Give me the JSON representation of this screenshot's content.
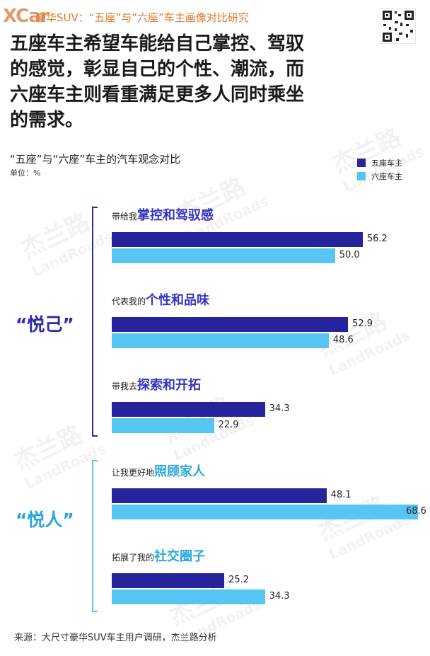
{
  "header": {
    "logo_text": "XCar",
    "title": "豪华SUV：“五座”与“六座”车主画像对比研究"
  },
  "headline": "五座车主希望车能给自己掌控、驾驭\n的感觉，彰显自己的个性、潮流，而\n六座车主则看重满足更多人同时乘坐\n的需求。",
  "chart_data": {
    "type": "bar",
    "orientation": "horizontal",
    "title": "“五座”与“六座”车主的汽车观念对比",
    "unit": "单位：%",
    "xlim": [
      0,
      70
    ],
    "legend_position": "top-right",
    "groups": [
      {
        "label": "“悦己”",
        "categories": [
          0,
          1,
          2
        ]
      },
      {
        "label": "“悦人”",
        "categories": [
          3,
          4
        ]
      }
    ],
    "categories": [
      {
        "prefix": "带给我",
        "highlight": "掌控和驾驭感"
      },
      {
        "prefix": "代表我的",
        "highlight": "个性和品味"
      },
      {
        "prefix": "带我去",
        "highlight": "探索和开拓"
      },
      {
        "prefix": "让我更好地",
        "highlight": "照顾家人"
      },
      {
        "prefix": "拓展了我的",
        "highlight": "社交圈子"
      }
    ],
    "series": [
      {
        "name": "五座车主",
        "color": "#27239d",
        "values": [
          56.2,
          52.9,
          34.3,
          48.1,
          25.2
        ]
      },
      {
        "name": "六座车主",
        "color": "#55c5f1",
        "values": [
          50.0,
          48.6,
          22.9,
          68.6,
          34.3
        ]
      }
    ],
    "value_labels": [
      [
        "56.2",
        "52.9",
        "34.3",
        "48.1",
        "25.2"
      ],
      [
        "50.0",
        "48.6",
        "22.9",
        "68.6",
        "34.3"
      ]
    ]
  },
  "watermark": {
    "cn": "杰兰路",
    "en": "LandRoads"
  },
  "source": "来源：大尺寸豪华SUV车主用户调研，杰兰路分析"
}
